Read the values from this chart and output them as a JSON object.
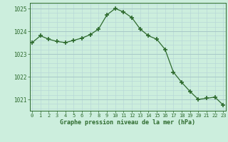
{
  "x": [
    0,
    1,
    2,
    3,
    4,
    5,
    6,
    7,
    8,
    9,
    10,
    11,
    12,
    13,
    14,
    15,
    16,
    17,
    18,
    19,
    20,
    21,
    22,
    23
  ],
  "y": [
    1023.5,
    1023.8,
    1023.65,
    1023.55,
    1023.5,
    1023.6,
    1023.7,
    1023.85,
    1024.1,
    1024.72,
    1025.0,
    1024.85,
    1024.6,
    1024.1,
    1023.8,
    1023.65,
    1023.2,
    1022.2,
    1021.75,
    1021.35,
    1021.0,
    1021.05,
    1021.1,
    1020.75
  ],
  "line_color": "#2d6a2d",
  "marker_color": "#2d6a2d",
  "bg_color": "#cceedd",
  "grid_color_major": "#a8c8c8",
  "grid_color_minor": "#b8d8d8",
  "xlabel": "Graphe pression niveau de la mer (hPa)",
  "xlabel_color": "#2d6a2d",
  "tick_color": "#2d6a2d",
  "ylim": [
    1020.5,
    1025.25
  ],
  "yticks": [
    1021,
    1022,
    1023,
    1024,
    1025
  ],
  "xlim": [
    -0.3,
    23.3
  ],
  "xticks": [
    0,
    1,
    2,
    3,
    4,
    5,
    6,
    7,
    8,
    9,
    10,
    11,
    12,
    13,
    14,
    15,
    16,
    17,
    18,
    19,
    20,
    21,
    22,
    23
  ]
}
